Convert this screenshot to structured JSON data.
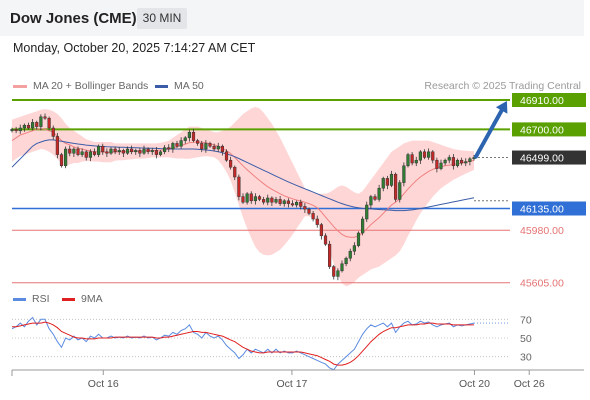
{
  "header": {
    "title": "Dow Jones (CME)",
    "timeframe": "30 MIN",
    "datetime": "Monday, October 20, 2025 7:14:27 AM CET"
  },
  "legend": {
    "ma20_bb": "MA 20 + Bollinger Bands",
    "ma50": "MA 50",
    "credit": "Research © 2025 Trading Central",
    "rsi": "RSI",
    "ma9": "9MA"
  },
  "colors": {
    "up_candle": "#2e7d32",
    "down_candle": "#c62828",
    "bollinger_fill": "#ffd6d6",
    "ma20": "#f08080",
    "ma50": "#3b5da8",
    "resistance": "#5aa000",
    "current": "#333333",
    "support1": "#2f6fd6",
    "support_weak": "#e57373",
    "rsi": "#5b8be0",
    "rsi_ma": "#e02020",
    "arrow": "#2c64b0"
  },
  "chart_data": [
    {
      "type": "candlestick",
      "x_ticks": [
        "Oct 16",
        "Oct 17",
        "Oct 20",
        "Oct 26"
      ],
      "ylim": [
        45560,
        46960
      ],
      "levels": [
        {
          "label": "46910.00",
          "value": 46910,
          "kind": "resistance"
        },
        {
          "label": "46700.00",
          "value": 46700,
          "kind": "resistance"
        },
        {
          "label": "46499.00",
          "value": 46499,
          "kind": "current"
        },
        {
          "label": "46135.00",
          "value": 46135,
          "kind": "support"
        },
        {
          "label": "45980.00",
          "value": 45980,
          "kind": "support-weak"
        },
        {
          "label": "45605.00",
          "value": 45605,
          "kind": "support-weak"
        }
      ],
      "closes": [
        46700,
        46690,
        46710,
        46730,
        46710,
        46750,
        46720,
        46790,
        46780,
        46710,
        46650,
        46520,
        46440,
        46560,
        46530,
        46560,
        46520,
        46540,
        46500,
        46540,
        46520,
        46580,
        46540,
        46530,
        46560,
        46540,
        46550,
        46530,
        46560,
        46540,
        46550,
        46530,
        46560,
        46540,
        46550,
        46520,
        46540,
        46570,
        46560,
        46600,
        46580,
        46620,
        46640,
        46680,
        46620,
        46600,
        46560,
        46600,
        46580,
        46560,
        46580,
        46540,
        46480,
        46430,
        46360,
        46220,
        46180,
        46240,
        46190,
        46220,
        46200,
        46180,
        46210,
        46180,
        46200,
        46170,
        46190,
        46170,
        46160,
        46180,
        46150,
        46130,
        46100,
        46060,
        46020,
        45940,
        45880,
        45720,
        45650,
        45690,
        45740,
        45780,
        45830,
        45870,
        45960,
        46060,
        46160,
        46220,
        46200,
        46280,
        46350,
        46300,
        46380,
        46200,
        46320,
        46440,
        46520,
        46460,
        46480,
        46540,
        46500,
        46540,
        46480,
        46420,
        46460,
        46480,
        46500,
        46440,
        46480,
        46460,
        46470,
        46490,
        46499
      ],
      "ma20": [
        46620,
        46640,
        46660,
        46670,
        46680,
        46690,
        46700,
        46705,
        46700,
        46690,
        46680,
        46650,
        46620,
        46600,
        46590,
        46575,
        46565,
        46560,
        46552,
        46546,
        46540,
        46540,
        46538,
        46538,
        46538,
        46538,
        46540,
        46540,
        46542,
        46543,
        46545,
        46545,
        46546,
        46548,
        46550,
        46550,
        46552,
        46555,
        46560,
        46568,
        46576,
        46586,
        46595,
        46605,
        46608,
        46610,
        46608,
        46604,
        46598,
        46590,
        46580,
        46566,
        46548,
        46528,
        46500,
        46470,
        46440,
        46412,
        46386,
        46360,
        46336,
        46312,
        46290,
        46272,
        46256,
        46240,
        46226,
        46214,
        46204,
        46196,
        46188,
        46180,
        46170,
        46158,
        46140,
        46110,
        46075,
        46040,
        46005,
        45975,
        45950,
        45935,
        45930,
        45930,
        45940,
        45960,
        45990,
        46020,
        46045,
        46070,
        46100,
        46130,
        46160,
        46180,
        46205,
        46240,
        46275,
        46305,
        46335,
        46360,
        46380,
        46400,
        46415,
        46425,
        46435,
        46440,
        46445,
        46450,
        46455,
        46460,
        46466,
        46472,
        46478
      ],
      "bb_upper": [
        46770,
        46780,
        46790,
        46800,
        46810,
        46820,
        46830,
        46840,
        46845,
        46840,
        46830,
        46810,
        46780,
        46740,
        46710,
        46690,
        46670,
        46650,
        46630,
        46620,
        46610,
        46610,
        46610,
        46610,
        46610,
        46600,
        46600,
        46600,
        46600,
        46600,
        46600,
        46600,
        46600,
        46600,
        46600,
        46600,
        46605,
        46610,
        46620,
        46640,
        46660,
        46680,
        46700,
        46720,
        46720,
        46720,
        46710,
        46700,
        46690,
        46680,
        46680,
        46690,
        46700,
        46720,
        46750,
        46780,
        46810,
        46830,
        46850,
        46860,
        46850,
        46820,
        46780,
        46740,
        46690,
        46640,
        46580,
        46520,
        46460,
        46400,
        46340,
        46280,
        46260,
        46250,
        46240,
        46240,
        46240,
        46250,
        46270,
        46290,
        46300,
        46290,
        46270,
        46250,
        46240,
        46260,
        46300,
        46340,
        46380,
        46420,
        46460,
        46500,
        46540,
        46560,
        46580,
        46600,
        46610,
        46620,
        46620,
        46620,
        46620,
        46620,
        46610,
        46600,
        46590,
        46580,
        46570,
        46560,
        46555,
        46550,
        46548,
        46546,
        46545
      ],
      "bb_lower": [
        46470,
        46490,
        46510,
        46520,
        46530,
        46540,
        46550,
        46560,
        46555,
        46540,
        46520,
        46490,
        46450,
        46440,
        46450,
        46460,
        46460,
        46470,
        46474,
        46472,
        46470,
        46470,
        46466,
        46466,
        46466,
        46476,
        46480,
        46480,
        46484,
        46486,
        46490,
        46490,
        46492,
        46496,
        46500,
        46500,
        46499,
        46500,
        46500,
        46496,
        46492,
        46492,
        46490,
        46490,
        46496,
        46500,
        46506,
        46508,
        46506,
        46500,
        46480,
        46442,
        46396,
        46336,
        46250,
        46160,
        46070,
        45994,
        45922,
        45860,
        45822,
        45804,
        45800,
        45804,
        45822,
        45840,
        45872,
        45908,
        45948,
        45992,
        46036,
        46080,
        46080,
        46066,
        46040,
        45980,
        45910,
        45830,
        45740,
        45660,
        45600,
        45580,
        45590,
        45610,
        45640,
        45660,
        45680,
        45700,
        45710,
        45720,
        45740,
        45760,
        45780,
        45800,
        45830,
        45880,
        45940,
        45990,
        46050,
        46100,
        46140,
        46180,
        46220,
        46250,
        46280,
        46300,
        46320,
        46340,
        46355,
        46370,
        46384,
        46398,
        46411
      ],
      "ma50": [
        46430,
        46460,
        46490,
        46520,
        46550,
        46580,
        46600,
        46610,
        46620,
        46625,
        46625,
        46620,
        46615,
        46610,
        46605,
        46600,
        46596,
        46592,
        46588,
        46585,
        46582,
        46580,
        46578,
        46576,
        46575,
        46574,
        46573,
        46572,
        46571,
        46570,
        46569,
        46568,
        46567,
        46566,
        46565,
        46564,
        46563,
        46562,
        46561,
        46560,
        46560,
        46560,
        46560,
        46560,
        46560,
        46558,
        46556,
        46553,
        46550,
        46546,
        46540,
        46533,
        46525,
        46516,
        46505,
        46492,
        46478,
        46464,
        46450,
        46436,
        46422,
        46408,
        46394,
        46380,
        46366,
        46352,
        46338,
        46325,
        46312,
        46300,
        46288,
        46276,
        46264,
        46252,
        46240,
        46228,
        46216,
        46204,
        46192,
        46180,
        46170,
        46160,
        46152,
        46145,
        46140,
        46136,
        46134,
        46132,
        46130,
        46128,
        46126,
        46124,
        46122,
        46120,
        46120,
        46120,
        46122,
        46125,
        46130,
        46135,
        46140,
        46146,
        46152,
        46158,
        46164,
        46170,
        46176,
        46182,
        46188,
        46194,
        46200,
        46206,
        46212
      ]
    },
    {
      "type": "line",
      "name": "RSI",
      "y_ticks": [
        70,
        50,
        30
      ],
      "ylim": [
        20,
        80
      ],
      "rsi": [
        60,
        62,
        66,
        62,
        68,
        72,
        64,
        70,
        70,
        60,
        54,
        46,
        40,
        50,
        48,
        52,
        48,
        50,
        46,
        52,
        50,
        54,
        50,
        50,
        52,
        50,
        51,
        50,
        52,
        50,
        51,
        50,
        52,
        50,
        51,
        48,
        50,
        53,
        52,
        56,
        54,
        58,
        60,
        64,
        56,
        54,
        50,
        56,
        52,
        50,
        52,
        48,
        42,
        38,
        34,
        28,
        32,
        38,
        34,
        38,
        36,
        34,
        38,
        34,
        38,
        34,
        36,
        34,
        34,
        36,
        34,
        32,
        30,
        28,
        26,
        24,
        22,
        18,
        16,
        22,
        26,
        30,
        34,
        38,
        46,
        54,
        60,
        64,
        62,
        64,
        66,
        62,
        66,
        56,
        62,
        66,
        68,
        64,
        65,
        68,
        66,
        67,
        64,
        62,
        64,
        65,
        66,
        62,
        64,
        63,
        64,
        65,
        66
      ],
      "ma9": [
        62,
        62,
        63,
        64,
        65,
        66,
        66,
        66,
        67,
        66,
        64,
        61,
        57,
        55,
        53,
        51,
        50,
        50,
        49,
        49,
        49,
        50,
        50,
        50,
        50,
        51,
        51,
        51,
        51,
        51,
        51,
        51,
        51,
        51,
        51,
        50,
        50,
        51,
        51,
        52,
        53,
        54,
        55,
        56,
        57,
        57,
        56,
        56,
        55,
        54,
        53,
        52,
        50,
        48,
        46,
        43,
        40,
        38,
        36,
        35,
        34,
        34,
        35,
        35,
        35,
        35,
        35,
        35,
        35,
        35,
        35,
        34,
        33,
        32,
        31,
        29,
        27,
        25,
        22,
        21,
        21,
        22,
        24,
        27,
        31,
        36,
        41,
        46,
        50,
        54,
        57,
        59,
        61,
        61,
        62,
        63,
        64,
        64,
        64,
        65,
        65,
        66,
        66,
        65,
        65,
        65,
        65,
        64,
        64,
        64,
        64,
        64,
        64
      ]
    }
  ]
}
